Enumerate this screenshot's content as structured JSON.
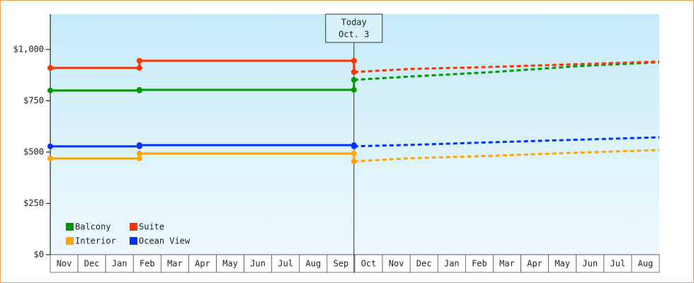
{
  "chart_data": {
    "type": "line",
    "xlim": [
      0,
      22
    ],
    "ylim": [
      0,
      1172
    ],
    "yticks": [
      {
        "value": 0,
        "label": "$0"
      },
      {
        "value": 250,
        "label": "$250"
      },
      {
        "value": 500,
        "label": "$500"
      },
      {
        "value": 750,
        "label": "$750"
      },
      {
        "value": 1000,
        "label": "$1,000"
      }
    ],
    "months": [
      "Nov",
      "Dec",
      "Jan",
      "Feb",
      "Mar",
      "Apr",
      "May",
      "Jun",
      "Jul",
      "Aug",
      "Sep",
      "Oct",
      "Nov",
      "Dec",
      "Jan",
      "Feb",
      "Mar",
      "Apr",
      "May",
      "Jun",
      "Jul",
      "Aug"
    ],
    "legend": "lower left",
    "annotation": {
      "x": 10.97,
      "lines": [
        "Today",
        "Oct. 3"
      ]
    },
    "series": [
      {
        "name": "Balcony",
        "color": "#009900",
        "x": [
          0,
          3.22,
          3.22,
          10.97,
          10.97
        ],
        "values": [
          800,
          800,
          803,
          803,
          852
        ],
        "forecast_x": [
          10.97,
          13,
          16,
          19,
          22
        ],
        "forecast_values": [
          852,
          868,
          890,
          918,
          938
        ]
      },
      {
        "name": "Suite",
        "color": "#ff3300",
        "x": [
          0,
          3.22,
          3.22,
          10.97,
          10.97
        ],
        "values": [
          910,
          910,
          945,
          945,
          890
        ],
        "forecast_x": [
          10.97,
          13,
          16,
          19,
          22
        ],
        "forecast_values": [
          890,
          905,
          915,
          928,
          941
        ]
      },
      {
        "name": "Interior",
        "color": "#ffa500",
        "x": [
          0,
          3.22,
          3.22,
          10.97,
          10.97
        ],
        "values": [
          469,
          469,
          493,
          493,
          455
        ],
        "forecast_x": [
          10.97,
          13,
          16,
          19,
          22
        ],
        "forecast_values": [
          455,
          470,
          482,
          497,
          510
        ]
      },
      {
        "name": "Ocean View",
        "color": "#0033ff",
        "x": [
          0,
          3.22,
          3.22,
          10.97,
          10.97
        ],
        "values": [
          528,
          528,
          534,
          534,
          528
        ],
        "forecast_x": [
          10.97,
          13,
          16,
          19,
          22
        ],
        "forecast_values": [
          528,
          535,
          548,
          560,
          572
        ]
      }
    ]
  }
}
